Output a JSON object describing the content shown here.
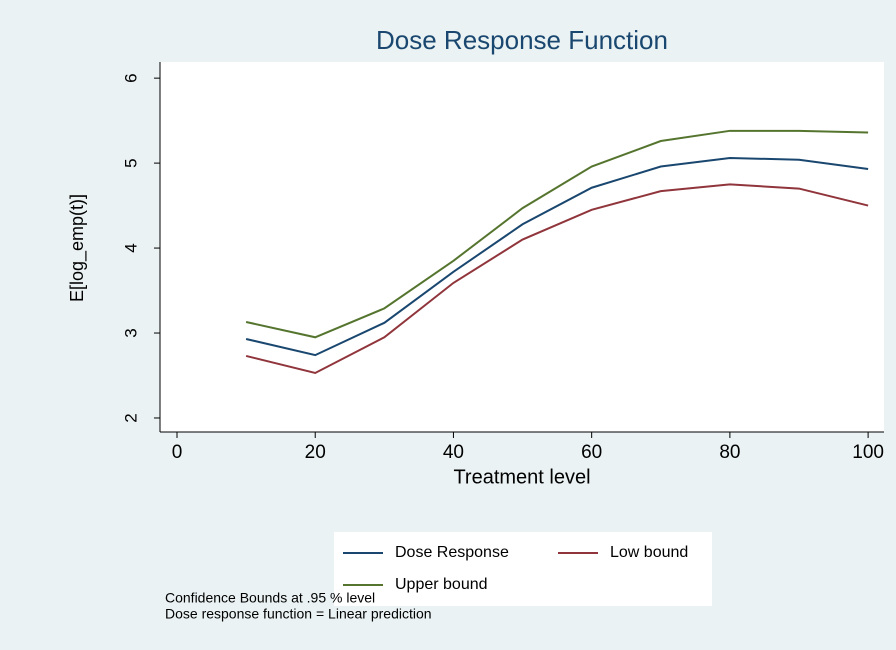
{
  "chart_data": {
    "type": "line",
    "title": "Dose Response Function",
    "x_label": "Treatment level",
    "y_label": "E[log_emp(t)]",
    "x": [
      10,
      20,
      30,
      40,
      50,
      60,
      70,
      80,
      90,
      100
    ],
    "series": [
      {
        "name": "Dose Response",
        "color": "#1a476f",
        "values": [
          2.93,
          2.74,
          3.12,
          3.72,
          4.28,
          4.71,
          4.96,
          5.06,
          5.04,
          4.93
        ]
      },
      {
        "name": "Low bound",
        "color": "#90353b",
        "values": [
          2.73,
          2.53,
          2.95,
          3.59,
          4.1,
          4.45,
          4.67,
          4.75,
          4.7,
          4.5
        ]
      },
      {
        "name": "Upper bound",
        "color": "#55752f",
        "values": [
          3.13,
          2.95,
          3.29,
          3.85,
          4.47,
          4.96,
          5.26,
          5.38,
          5.38,
          5.36
        ]
      }
    ],
    "xlim": [
      -2.46,
      102.3
    ],
    "xticks": [
      0,
      20,
      40,
      60,
      80,
      100
    ],
    "ylim": [
      1.835,
      6.19
    ],
    "yticks": [
      2,
      3,
      4,
      5,
      6
    ],
    "grid": false,
    "legend": "bottom",
    "notes": [
      "Confidence Bounds at .95 % level",
      "Dose response function = Linear prediction"
    ]
  }
}
